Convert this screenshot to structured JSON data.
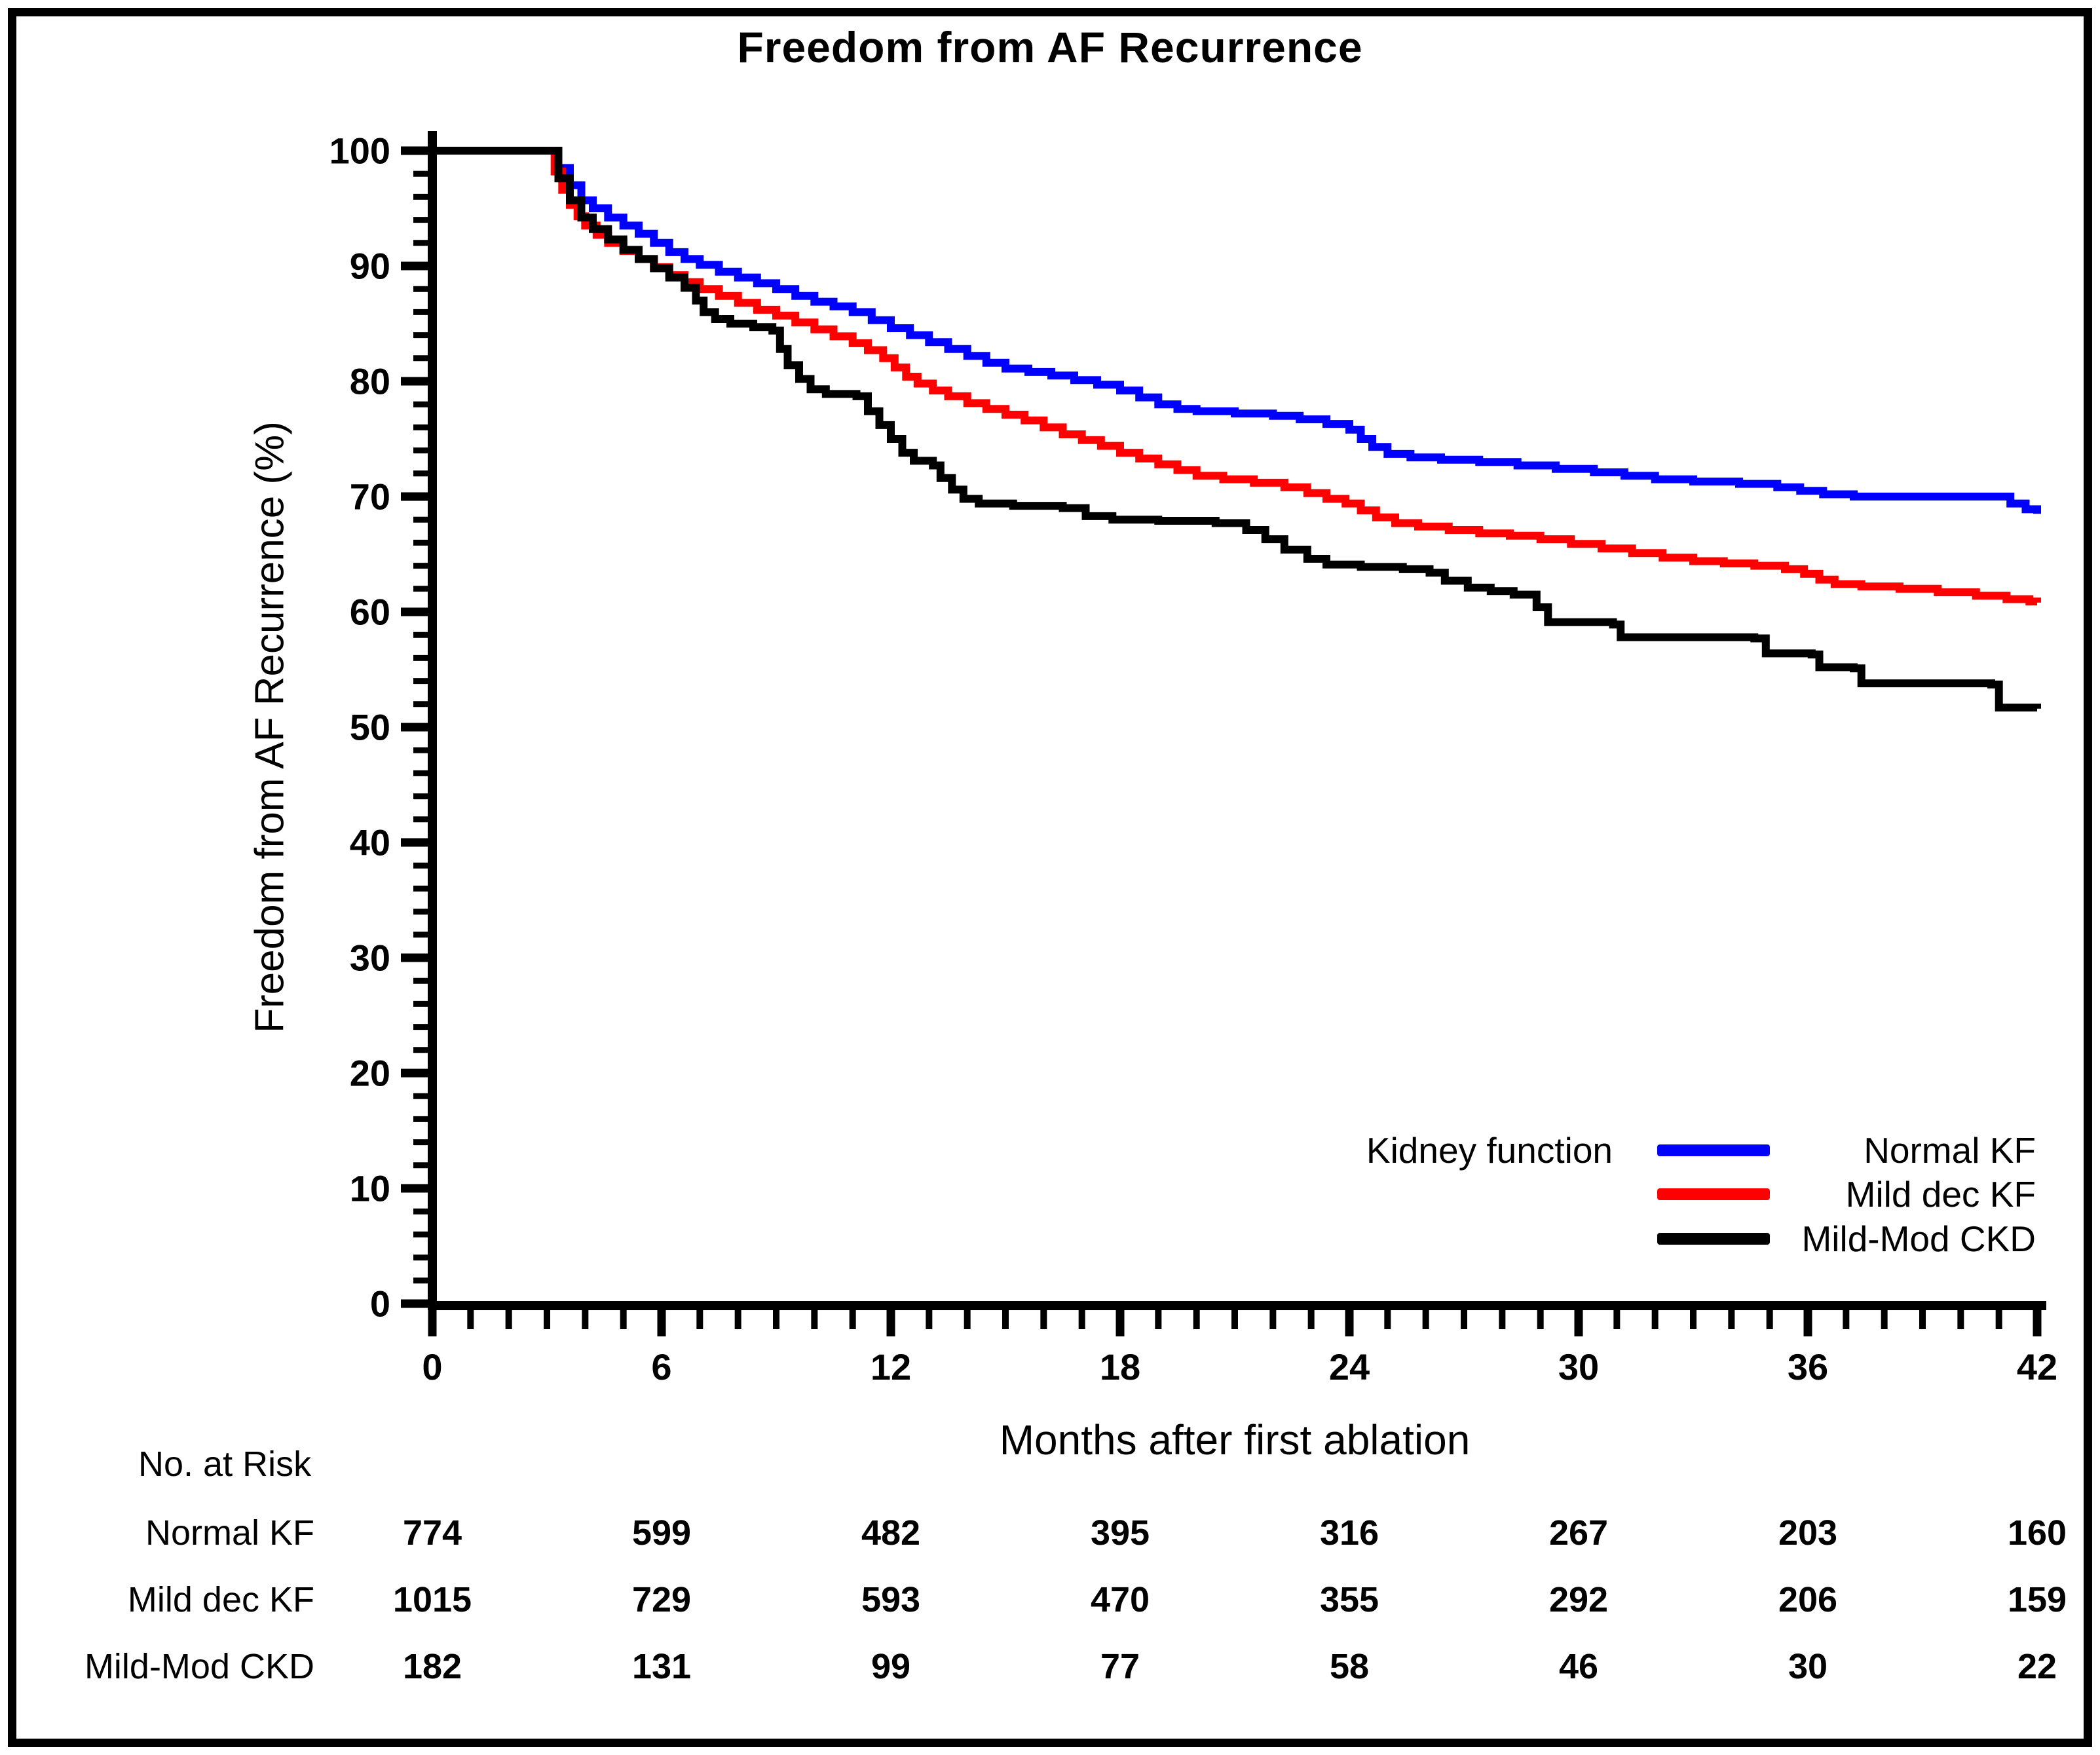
{
  "figure": {
    "background": "#ffffff",
    "border_color": "#000000"
  },
  "chart_data": {
    "type": "line",
    "subtype": "kaplan-meier-step",
    "title": "Freedom from AF Recurrence",
    "xlabel": "Months after first ablation",
    "ylabel": "Freedom from AF Recurrence (%)",
    "xlim": [
      0,
      42
    ],
    "ylim": [
      0,
      100
    ],
    "x_major_ticks": [
      0,
      6,
      12,
      18,
      24,
      30,
      36,
      42
    ],
    "x_minor_step": 1,
    "y_major_ticks": [
      0,
      10,
      20,
      30,
      40,
      50,
      60,
      70,
      80,
      90,
      100
    ],
    "y_minor_step": 2,
    "grid": false,
    "axis_color": "#000000",
    "legend": {
      "title": "Kidney function",
      "position": "inside-lower-right"
    },
    "series": [
      {
        "name": "Normal KF",
        "color": "#0000ff",
        "points": [
          [
            0,
            100
          ],
          [
            3,
            100
          ],
          [
            3.3,
            98.5
          ],
          [
            3.6,
            97
          ],
          [
            3.9,
            95.7
          ],
          [
            4.2,
            95
          ],
          [
            4.6,
            94.2
          ],
          [
            5,
            93.5
          ],
          [
            5.4,
            92.8
          ],
          [
            5.8,
            92
          ],
          [
            6.2,
            91.2
          ],
          [
            6.6,
            90.6
          ],
          [
            7,
            90.1
          ],
          [
            7.5,
            89.5
          ],
          [
            8,
            89
          ],
          [
            8.5,
            88.5
          ],
          [
            9,
            88
          ],
          [
            9.5,
            87.4
          ],
          [
            10,
            86.9
          ],
          [
            10.5,
            86.5
          ],
          [
            11,
            86
          ],
          [
            11.5,
            85.3
          ],
          [
            12,
            84.6
          ],
          [
            12.5,
            84
          ],
          [
            13,
            83.4
          ],
          [
            13.5,
            82.8
          ],
          [
            14,
            82.2
          ],
          [
            14.5,
            81.6
          ],
          [
            15,
            81.1
          ],
          [
            15.6,
            80.8
          ],
          [
            16.2,
            80.5
          ],
          [
            16.8,
            80.1
          ],
          [
            17.4,
            79.7
          ],
          [
            18,
            79.2
          ],
          [
            18.5,
            78.6
          ],
          [
            19,
            78
          ],
          [
            19.5,
            77.6
          ],
          [
            20,
            77.4
          ],
          [
            21,
            77.2
          ],
          [
            22,
            77
          ],
          [
            22.7,
            76.7
          ],
          [
            23.4,
            76.3
          ],
          [
            24,
            75.8
          ],
          [
            24.3,
            75
          ],
          [
            24.6,
            74.3
          ],
          [
            25,
            73.7
          ],
          [
            25.6,
            73.4
          ],
          [
            26.4,
            73.2
          ],
          [
            27.4,
            73
          ],
          [
            28.4,
            72.7
          ],
          [
            29.4,
            72.4
          ],
          [
            30.4,
            72.1
          ],
          [
            31.2,
            71.8
          ],
          [
            32,
            71.5
          ],
          [
            33,
            71.3
          ],
          [
            34.2,
            71.1
          ],
          [
            35.2,
            70.8
          ],
          [
            35.8,
            70.5
          ],
          [
            36.4,
            70.2
          ],
          [
            37.2,
            70
          ],
          [
            41,
            70
          ],
          [
            41.3,
            69.4
          ],
          [
            41.7,
            68.9
          ],
          [
            42,
            68.5
          ]
        ]
      },
      {
        "name": "Mild dec KF",
        "color": "#ff0000",
        "points": [
          [
            0,
            100
          ],
          [
            3,
            100
          ],
          [
            3.2,
            98.2
          ],
          [
            3.4,
            96.6
          ],
          [
            3.6,
            95.3
          ],
          [
            3.8,
            94.3
          ],
          [
            4,
            93.5
          ],
          [
            4.3,
            92.7
          ],
          [
            4.6,
            92
          ],
          [
            5,
            91.3
          ],
          [
            5.4,
            90.6
          ],
          [
            5.8,
            89.9
          ],
          [
            6.2,
            89.2
          ],
          [
            6.6,
            88.6
          ],
          [
            7,
            88
          ],
          [
            7.5,
            87.4
          ],
          [
            8,
            86.8
          ],
          [
            8.5,
            86.2
          ],
          [
            9,
            85.7
          ],
          [
            9.5,
            85.1
          ],
          [
            10,
            84.5
          ],
          [
            10.5,
            83.9
          ],
          [
            11,
            83.3
          ],
          [
            11.4,
            82.7
          ],
          [
            11.8,
            82
          ],
          [
            12.1,
            81.2
          ],
          [
            12.4,
            80.4
          ],
          [
            12.7,
            79.8
          ],
          [
            13.1,
            79.2
          ],
          [
            13.5,
            78.7
          ],
          [
            14,
            78.1
          ],
          [
            14.5,
            77.6
          ],
          [
            15,
            77.1
          ],
          [
            15.5,
            76.6
          ],
          [
            16,
            76
          ],
          [
            16.5,
            75.4
          ],
          [
            17,
            74.9
          ],
          [
            17.5,
            74.4
          ],
          [
            18,
            73.8
          ],
          [
            18.5,
            73.3
          ],
          [
            19,
            72.8
          ],
          [
            19.5,
            72.3
          ],
          [
            20,
            71.8
          ],
          [
            20.7,
            71.5
          ],
          [
            21.5,
            71.2
          ],
          [
            22.3,
            70.8
          ],
          [
            22.9,
            70.3
          ],
          [
            23.4,
            69.8
          ],
          [
            23.9,
            69.4
          ],
          [
            24.3,
            68.8
          ],
          [
            24.7,
            68.2
          ],
          [
            25.2,
            67.7
          ],
          [
            25.8,
            67.4
          ],
          [
            26.6,
            67.1
          ],
          [
            27.4,
            66.8
          ],
          [
            28.2,
            66.6
          ],
          [
            29,
            66.3
          ],
          [
            29.8,
            65.9
          ],
          [
            30.6,
            65.5
          ],
          [
            31.4,
            65.1
          ],
          [
            32.2,
            64.7
          ],
          [
            33,
            64.4
          ],
          [
            33.8,
            64.2
          ],
          [
            34.6,
            64
          ],
          [
            35.4,
            63.7
          ],
          [
            35.9,
            63.3
          ],
          [
            36.3,
            62.8
          ],
          [
            36.7,
            62.4
          ],
          [
            37.4,
            62.2
          ],
          [
            38.4,
            62
          ],
          [
            39.4,
            61.7
          ],
          [
            40.4,
            61.4
          ],
          [
            41.2,
            61.1
          ],
          [
            41.8,
            60.9
          ],
          [
            42,
            60.8
          ]
        ]
      },
      {
        "name": "Mild-Mod CKD",
        "color": "#000000",
        "points": [
          [
            0,
            100
          ],
          [
            3,
            100
          ],
          [
            3.3,
            97.6
          ],
          [
            3.6,
            95.7
          ],
          [
            3.9,
            94.2
          ],
          [
            4.2,
            93.2
          ],
          [
            4.6,
            92.3
          ],
          [
            5,
            91.4
          ],
          [
            5.4,
            90.6
          ],
          [
            5.8,
            89.8
          ],
          [
            6.2,
            89
          ],
          [
            6.6,
            88.1
          ],
          [
            6.9,
            87
          ],
          [
            7.1,
            86
          ],
          [
            7.4,
            85.4
          ],
          [
            7.8,
            85
          ],
          [
            8.4,
            84.7
          ],
          [
            8.9,
            84.4
          ],
          [
            9.1,
            82.8
          ],
          [
            9.3,
            81.4
          ],
          [
            9.6,
            80.2
          ],
          [
            9.9,
            79.3
          ],
          [
            10.3,
            78.9
          ],
          [
            11.1,
            78.7
          ],
          [
            11.4,
            77.4
          ],
          [
            11.7,
            76.2
          ],
          [
            12,
            75
          ],
          [
            12.3,
            73.8
          ],
          [
            12.6,
            73.1
          ],
          [
            13.1,
            72.7
          ],
          [
            13.3,
            71.6
          ],
          [
            13.6,
            70.6
          ],
          [
            13.9,
            69.8
          ],
          [
            14.3,
            69.4
          ],
          [
            15.2,
            69.2
          ],
          [
            16.5,
            69
          ],
          [
            17.1,
            68.3
          ],
          [
            17.8,
            68
          ],
          [
            19,
            67.9
          ],
          [
            20.5,
            67.7
          ],
          [
            21.3,
            67.1
          ],
          [
            21.8,
            66.3
          ],
          [
            22.3,
            65.4
          ],
          [
            22.9,
            64.6
          ],
          [
            23.4,
            64.1
          ],
          [
            24.3,
            63.9
          ],
          [
            25.4,
            63.7
          ],
          [
            26.1,
            63.4
          ],
          [
            26.5,
            62.7
          ],
          [
            27.1,
            62.1
          ],
          [
            27.7,
            61.8
          ],
          [
            28.3,
            61.5
          ],
          [
            28.9,
            60.4
          ],
          [
            29.2,
            59.1
          ],
          [
            30.9,
            58.9
          ],
          [
            31.1,
            57.8
          ],
          [
            34.6,
            57.7
          ],
          [
            34.9,
            56.4
          ],
          [
            36.1,
            56.3
          ],
          [
            36.3,
            55.2
          ],
          [
            37.2,
            55.1
          ],
          [
            37.4,
            53.8
          ],
          [
            40.8,
            53.7
          ],
          [
            41,
            51.7
          ],
          [
            42,
            51.6
          ]
        ]
      }
    ]
  },
  "risk_table": {
    "header": "No. at Risk",
    "times": [
      0,
      6,
      12,
      18,
      24,
      30,
      36,
      42
    ],
    "rows": [
      {
        "name": "Normal KF",
        "counts": [
          774,
          599,
          482,
          395,
          316,
          267,
          203,
          160
        ]
      },
      {
        "name": "Mild dec KF",
        "counts": [
          1015,
          729,
          593,
          470,
          355,
          292,
          206,
          159
        ]
      },
      {
        "name": "Mild-Mod CKD",
        "counts": [
          182,
          131,
          99,
          77,
          58,
          46,
          30,
          22
        ]
      }
    ]
  }
}
